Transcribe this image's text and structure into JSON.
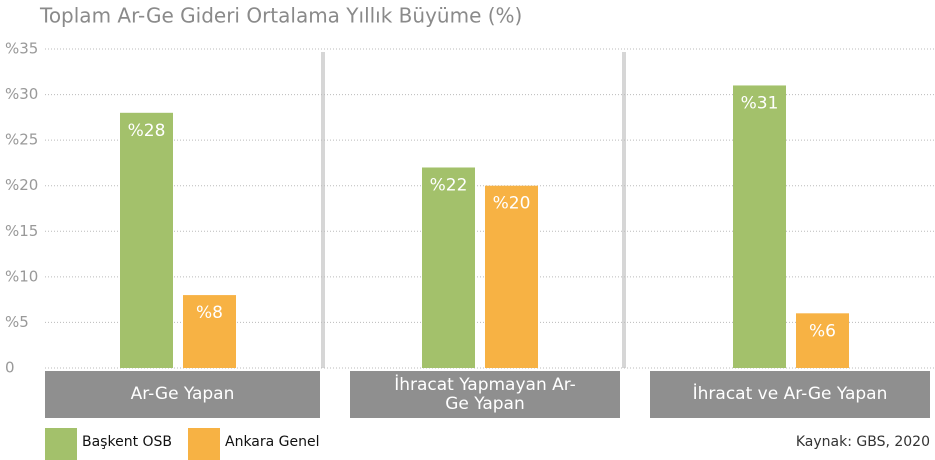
{
  "chart_data": {
    "type": "bar",
    "title": "Toplam Ar-Ge Gideri Ortalama Yıllık Büyüme (%)",
    "categories": [
      "Ar-Ge Yapan",
      "İhracat Yapmayan Ar-Ge Yapan",
      "İhracat ve Ar-Ge Yapan"
    ],
    "series": [
      {
        "name": "Başkent OSB",
        "color": "#a3c16b",
        "values": [
          28,
          22,
          31
        ],
        "value_labels": [
          "%28",
          "%22",
          "%31"
        ]
      },
      {
        "name": "Ankara Genel",
        "color": "#f7b244",
        "values": [
          8,
          20,
          6
        ],
        "value_labels": [
          "%8",
          "%20",
          "%6"
        ]
      }
    ],
    "ylim": [
      0,
      35
    ],
    "yticks": [
      0,
      {
        "value": 5,
        "label": "%5"
      },
      {
        "value": 10,
        "label": "%10"
      },
      {
        "value": 15,
        "label": "%15"
      },
      {
        "value": 20,
        "label": "%20"
      },
      {
        "value": 25,
        "label": "%25"
      },
      {
        "value": 30,
        "label": "%30"
      },
      {
        "value": 35,
        "label": "%35"
      }
    ],
    "grid": true,
    "source": "Kaynak: GBS, 2020"
  }
}
